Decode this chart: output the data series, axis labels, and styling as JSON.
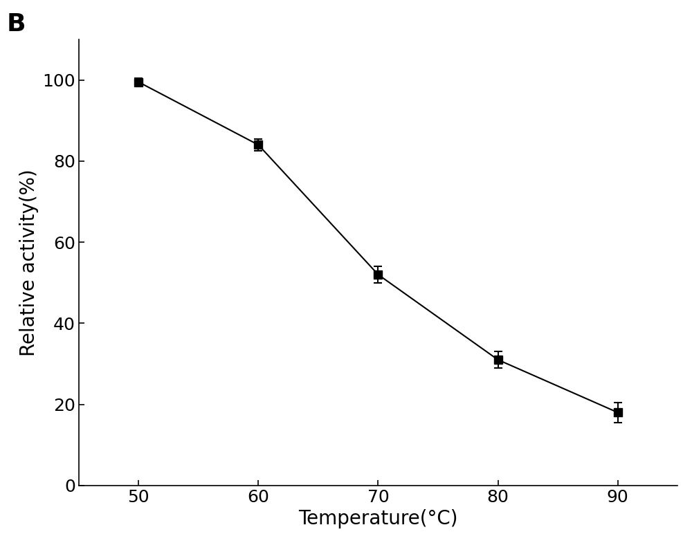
{
  "x": [
    50,
    60,
    70,
    80,
    90
  ],
  "y": [
    99.5,
    84.0,
    52.0,
    31.0,
    18.0
  ],
  "yerr": [
    1.0,
    1.5,
    2.0,
    2.0,
    2.5
  ],
  "xlabel": "Temperature(°C)",
  "ylabel": "Relative activity(%)",
  "panel_label": "B",
  "xlim": [
    45,
    95
  ],
  "ylim": [
    0,
    110
  ],
  "yticks": [
    0,
    20,
    40,
    60,
    80,
    100
  ],
  "xticks": [
    50,
    60,
    70,
    80,
    90
  ],
  "line_color": "#000000",
  "marker_color": "#000000",
  "marker": "-s",
  "marker_size": 8,
  "line_width": 1.5,
  "capsize": 4,
  "label_fontsize": 20,
  "tick_fontsize": 18,
  "panel_fontsize": 26,
  "background_color": "#ffffff"
}
